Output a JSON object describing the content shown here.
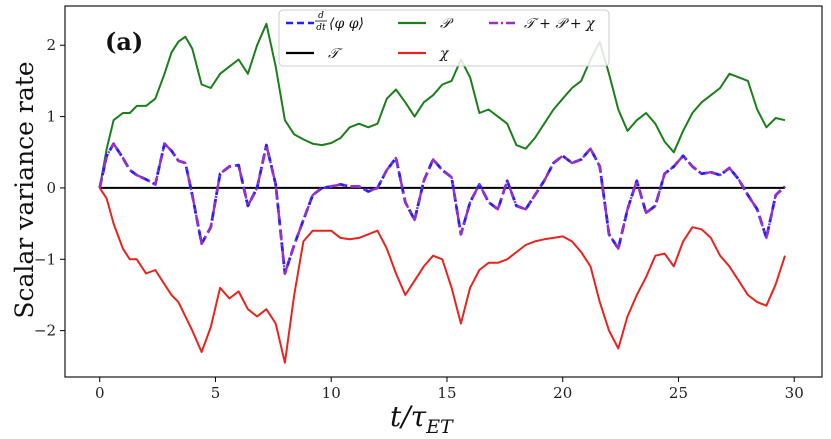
{
  "chart_data": {
    "type": "line",
    "panel_label": "(a)",
    "xlabel": "t/τ_ET",
    "xlabel_parts": {
      "main": "t/τ",
      "sub": "ET"
    },
    "ylabel": "Scalar variance rate",
    "xlim": [
      -1.5,
      31.2
    ],
    "ylim": [
      -2.65,
      2.55
    ],
    "xticks": [
      0,
      5,
      10,
      15,
      20,
      25,
      30
    ],
    "yticks": [
      -2,
      -1,
      0,
      1,
      2
    ],
    "xtick_labels": [
      "0",
      "5",
      "10",
      "15",
      "20",
      "25",
      "30"
    ],
    "ytick_labels": [
      "−2",
      "−1",
      "0",
      "1",
      "2"
    ],
    "legend_position": "top-center",
    "series": [
      {
        "name": "d/dt⟨φ φ⟩",
        "legend_label": "⟨φ φ⟩",
        "legend_frac": {
          "num": "d",
          "den": "dt"
        },
        "color": "#1f1fff",
        "style": "dashed",
        "x": [
          0,
          0.3,
          0.6,
          1.0,
          1.3,
          1.6,
          2.0,
          2.4,
          2.8,
          3.1,
          3.4,
          3.7,
          4.0,
          4.4,
          4.8,
          5.2,
          5.6,
          6.0,
          6.4,
          6.8,
          7.2,
          7.6,
          8.0,
          8.4,
          8.8,
          9.2,
          9.6,
          10.0,
          10.4,
          10.8,
          11.2,
          11.6,
          12.0,
          12.4,
          12.8,
          13.2,
          13.6,
          14.0,
          14.4,
          14.8,
          15.2,
          15.6,
          16.0,
          16.4,
          16.8,
          17.2,
          17.6,
          18.0,
          18.4,
          18.8,
          19.2,
          19.6,
          20.0,
          20.4,
          20.8,
          21.2,
          21.6,
          22.0,
          22.4,
          22.8,
          23.2,
          23.6,
          24.0,
          24.4,
          24.8,
          25.2,
          25.6,
          26.0,
          26.4,
          26.8,
          27.2,
          27.6,
          28.0,
          28.4,
          28.8,
          29.2,
          29.6
        ],
        "y": [
          0.0,
          0.45,
          0.62,
          0.42,
          0.25,
          0.18,
          0.12,
          0.05,
          0.62,
          0.52,
          0.38,
          0.35,
          -0.1,
          -0.78,
          -0.55,
          0.2,
          0.3,
          0.32,
          -0.25,
          0.0,
          0.6,
          0.05,
          -1.2,
          -0.8,
          -0.45,
          -0.1,
          0.0,
          0.02,
          0.05,
          0.02,
          0.02,
          -0.05,
          0.0,
          0.25,
          0.42,
          -0.2,
          -0.45,
          0.1,
          0.4,
          0.25,
          0.15,
          -0.65,
          -0.2,
          0.05,
          -0.2,
          -0.3,
          0.1,
          -0.25,
          -0.3,
          -0.1,
          0.1,
          0.35,
          0.45,
          0.35,
          0.4,
          0.55,
          0.3,
          -0.65,
          -0.85,
          -0.3,
          0.1,
          -0.35,
          -0.25,
          0.2,
          0.3,
          0.45,
          0.3,
          0.2,
          0.22,
          0.18,
          0.28,
          0.12,
          -0.1,
          -0.3,
          -0.7,
          -0.1,
          0.02
        ]
      },
      {
        "name": "𝒯",
        "legend_label": "𝒯",
        "color": "#000000",
        "style": "solid",
        "x": [
          0,
          29.6
        ],
        "y": [
          0.0,
          0.0
        ]
      },
      {
        "name": "𝒫",
        "legend_label": "𝒫",
        "color": "#1a7f1a",
        "style": "solid",
        "x": [
          0,
          0.3,
          0.6,
          1.0,
          1.3,
          1.6,
          2.0,
          2.4,
          2.8,
          3.1,
          3.4,
          3.7,
          4.0,
          4.4,
          4.8,
          5.2,
          5.6,
          6.0,
          6.4,
          6.8,
          7.2,
          7.6,
          8.0,
          8.4,
          8.8,
          9.2,
          9.6,
          10.0,
          10.4,
          10.8,
          11.2,
          11.6,
          12.0,
          12.4,
          12.8,
          13.2,
          13.6,
          14.0,
          14.4,
          14.8,
          15.2,
          15.6,
          16.0,
          16.4,
          16.8,
          17.2,
          17.6,
          18.0,
          18.4,
          18.8,
          19.2,
          19.6,
          20.0,
          20.4,
          20.8,
          21.2,
          21.6,
          22.0,
          22.4,
          22.8,
          23.2,
          23.6,
          24.0,
          24.4,
          24.8,
          25.2,
          25.6,
          26.0,
          26.4,
          26.8,
          27.2,
          27.6,
          28.0,
          28.4,
          28.8,
          29.2,
          29.6
        ],
        "y": [
          0.0,
          0.55,
          0.95,
          1.05,
          1.05,
          1.15,
          1.15,
          1.25,
          1.6,
          1.9,
          2.05,
          2.12,
          1.95,
          1.45,
          1.4,
          1.6,
          1.7,
          1.8,
          1.6,
          2.0,
          2.3,
          1.7,
          0.95,
          0.75,
          0.68,
          0.62,
          0.6,
          0.63,
          0.7,
          0.85,
          0.9,
          0.85,
          0.9,
          1.25,
          1.38,
          1.2,
          1.0,
          1.2,
          1.3,
          1.45,
          1.5,
          1.8,
          1.55,
          1.05,
          1.1,
          1.0,
          0.9,
          0.6,
          0.55,
          0.7,
          0.9,
          1.1,
          1.25,
          1.4,
          1.5,
          1.8,
          2.05,
          1.6,
          1.1,
          0.8,
          0.95,
          1.05,
          0.9,
          0.65,
          0.5,
          0.8,
          1.05,
          1.2,
          1.3,
          1.4,
          1.6,
          1.55,
          1.5,
          1.1,
          0.85,
          0.98,
          0.95
        ]
      },
      {
        "name": "χ",
        "legend_label": "χ",
        "color": "#e8241e",
        "style": "solid",
        "x": [
          0,
          0.3,
          0.6,
          1.0,
          1.3,
          1.6,
          2.0,
          2.4,
          2.8,
          3.1,
          3.4,
          3.7,
          4.0,
          4.4,
          4.8,
          5.2,
          5.6,
          6.0,
          6.4,
          6.8,
          7.2,
          7.6,
          8.0,
          8.4,
          8.8,
          9.2,
          9.6,
          10.0,
          10.4,
          10.8,
          11.2,
          11.6,
          12.0,
          12.4,
          12.8,
          13.2,
          13.6,
          14.0,
          14.4,
          14.8,
          15.2,
          15.6,
          16.0,
          16.4,
          16.8,
          17.2,
          17.6,
          18.0,
          18.4,
          18.8,
          19.2,
          19.6,
          20.0,
          20.4,
          20.8,
          21.2,
          21.6,
          22.0,
          22.4,
          22.8,
          23.2,
          23.6,
          24.0,
          24.4,
          24.8,
          25.2,
          25.6,
          26.0,
          26.4,
          26.8,
          27.2,
          27.6,
          28.0,
          28.4,
          28.8,
          29.2,
          29.6
        ],
        "y": [
          0.0,
          -0.15,
          -0.5,
          -0.85,
          -1.0,
          -1.0,
          -1.2,
          -1.15,
          -1.35,
          -1.5,
          -1.6,
          -1.8,
          -2.0,
          -2.3,
          -1.95,
          -1.4,
          -1.55,
          -1.45,
          -1.7,
          -1.8,
          -1.7,
          -1.9,
          -2.45,
          -1.5,
          -0.75,
          -0.6,
          -0.6,
          -0.6,
          -0.7,
          -0.72,
          -0.7,
          -0.65,
          -0.6,
          -0.85,
          -1.2,
          -1.5,
          -1.3,
          -1.1,
          -0.95,
          -1.0,
          -1.4,
          -1.9,
          -1.4,
          -1.15,
          -1.05,
          -1.05,
          -1.0,
          -0.9,
          -0.8,
          -0.75,
          -0.72,
          -0.7,
          -0.68,
          -0.75,
          -0.9,
          -1.1,
          -1.6,
          -2.0,
          -2.25,
          -1.8,
          -1.5,
          -1.25,
          -0.95,
          -0.92,
          -1.1,
          -0.75,
          -0.55,
          -0.58,
          -0.7,
          -0.95,
          -1.1,
          -1.3,
          -1.5,
          -1.6,
          -1.65,
          -1.35,
          -0.95
        ]
      },
      {
        "name": "𝒯 + 𝒫 + χ",
        "legend_label": "𝒯 + 𝒫 + χ",
        "color": "#9a2fc4",
        "style": "dashdot",
        "x": [
          0,
          0.3,
          0.6,
          1.0,
          1.3,
          1.6,
          2.0,
          2.4,
          2.8,
          3.1,
          3.4,
          3.7,
          4.0,
          4.4,
          4.8,
          5.2,
          5.6,
          6.0,
          6.4,
          6.8,
          7.2,
          7.6,
          8.0,
          8.4,
          8.8,
          9.2,
          9.6,
          10.0,
          10.4,
          10.8,
          11.2,
          11.6,
          12.0,
          12.4,
          12.8,
          13.2,
          13.6,
          14.0,
          14.4,
          14.8,
          15.2,
          15.6,
          16.0,
          16.4,
          16.8,
          17.2,
          17.6,
          18.0,
          18.4,
          18.8,
          19.2,
          19.6,
          20.0,
          20.4,
          20.8,
          21.2,
          21.6,
          22.0,
          22.4,
          22.8,
          23.2,
          23.6,
          24.0,
          24.4,
          24.8,
          25.2,
          25.6,
          26.0,
          26.4,
          26.8,
          27.2,
          27.6,
          28.0,
          28.4,
          28.8,
          29.2,
          29.6
        ],
        "y": [
          0.0,
          0.45,
          0.62,
          0.42,
          0.25,
          0.18,
          0.12,
          0.05,
          0.62,
          0.52,
          0.38,
          0.35,
          -0.1,
          -0.78,
          -0.55,
          0.2,
          0.3,
          0.32,
          -0.25,
          0.0,
          0.6,
          0.05,
          -1.2,
          -0.8,
          -0.45,
          -0.1,
          0.0,
          0.02,
          0.05,
          0.02,
          0.02,
          -0.05,
          0.0,
          0.25,
          0.42,
          -0.2,
          -0.45,
          0.1,
          0.4,
          0.25,
          0.15,
          -0.65,
          -0.2,
          0.05,
          -0.2,
          -0.3,
          0.1,
          -0.25,
          -0.3,
          -0.1,
          0.1,
          0.35,
          0.45,
          0.35,
          0.4,
          0.55,
          0.3,
          -0.65,
          -0.85,
          -0.3,
          0.1,
          -0.35,
          -0.25,
          0.2,
          0.3,
          0.45,
          0.3,
          0.2,
          0.22,
          0.18,
          0.28,
          0.12,
          -0.1,
          -0.3,
          -0.7,
          -0.1,
          0.02
        ]
      }
    ]
  }
}
